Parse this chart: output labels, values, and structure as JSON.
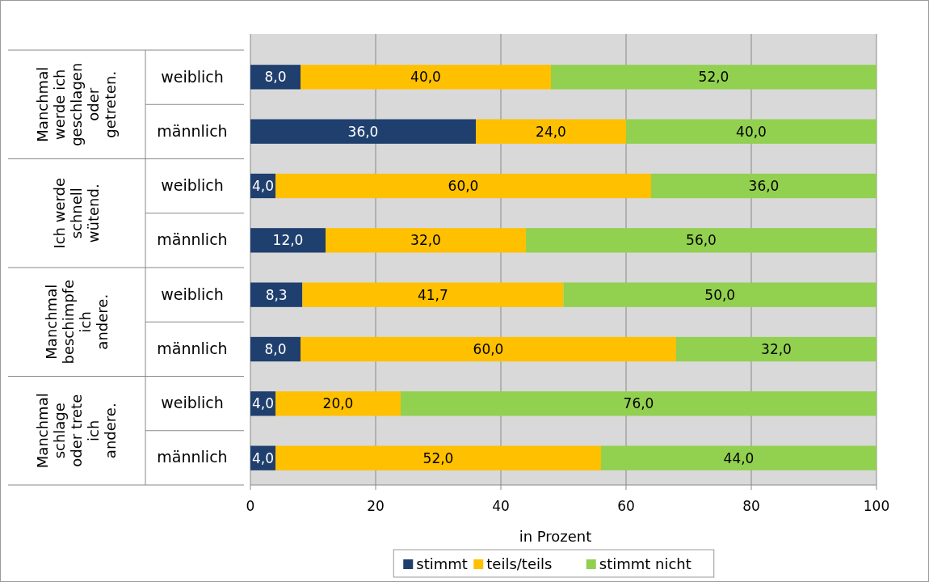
{
  "chart_data": {
    "type": "bar",
    "orientation": "horizontal",
    "stacked": true,
    "categories": [
      "weiblich",
      "männlich",
      "weiblich",
      "männlich",
      "weiblich",
      "männlich",
      "weiblich",
      "männlich"
    ],
    "series": [
      {
        "name": "stimmt",
        "color": "#1f3f6e",
        "values": [
          8,
          36,
          4,
          12,
          8.3,
          8,
          4,
          4
        ],
        "value_labels": [
          "8,0",
          "36,0",
          "4,0",
          "12,0",
          "8,3",
          "8,0",
          "4,0",
          "4,0"
        ]
      },
      {
        "name": "teils/teils",
        "color": "#ffc000",
        "values": [
          40,
          24,
          60,
          32,
          41.7,
          60,
          20,
          52
        ],
        "value_labels": [
          "40,0",
          "24,0",
          "60,0",
          "32,0",
          "41,7",
          "60,0",
          "20,0",
          "52,0"
        ]
      },
      {
        "name": "stimmt nicht",
        "color": "#92d050",
        "values": [
          52,
          40,
          36,
          56,
          50,
          32,
          76,
          44
        ],
        "value_labels": [
          "52,0",
          "40,0",
          "36,0",
          "56,0",
          "50,0",
          "32,0",
          "76,0",
          "44,0"
        ]
      }
    ],
    "xlabel": "in Prozent",
    "xlim": [
      0,
      100
    ],
    "xticks": [
      0,
      20,
      40,
      60,
      80,
      100
    ],
    "grid": "x",
    "legend": "bottom",
    "annotations": [
      "Manchmal werde ich geschlagen oder getreten.",
      "Ich werde schnell wütend.",
      "Manchmal beschimpfe ich andere.",
      "Manchmal schlage oder trete ich andere."
    ]
  }
}
